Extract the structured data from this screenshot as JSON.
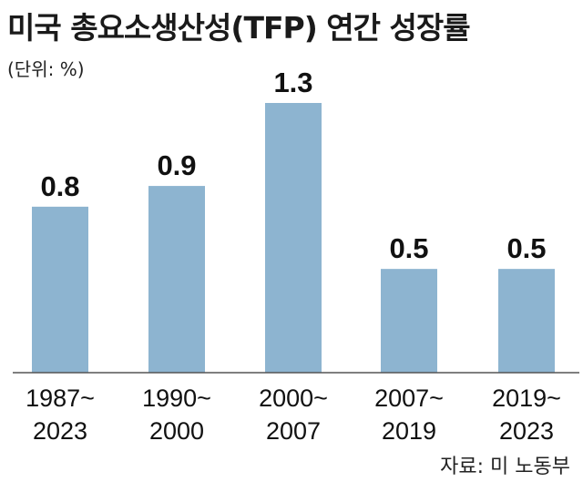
{
  "header": {
    "title": "미국 총요소생산성(TFP) 연간 성장률",
    "unit": "(단위: %)"
  },
  "footer": {
    "source": "자료: 미 노동부"
  },
  "colors": {
    "bar": "#8db4d0",
    "axis": "#555555"
  },
  "chart_data": {
    "type": "bar",
    "categories": [
      [
        "1987~",
        "2023"
      ],
      [
        "1990~",
        "2000"
      ],
      [
        "2000~",
        "2007"
      ],
      [
        "2007~",
        "2019"
      ],
      [
        "2019~",
        "2023"
      ]
    ],
    "values": [
      0.8,
      0.9,
      1.3,
      0.5,
      0.5
    ],
    "data_labels": [
      "0.8",
      "0.9",
      "1.3",
      "0.5",
      "0.5"
    ],
    "ylim": [
      0,
      1.3
    ],
    "grid": false,
    "legend": false
  }
}
